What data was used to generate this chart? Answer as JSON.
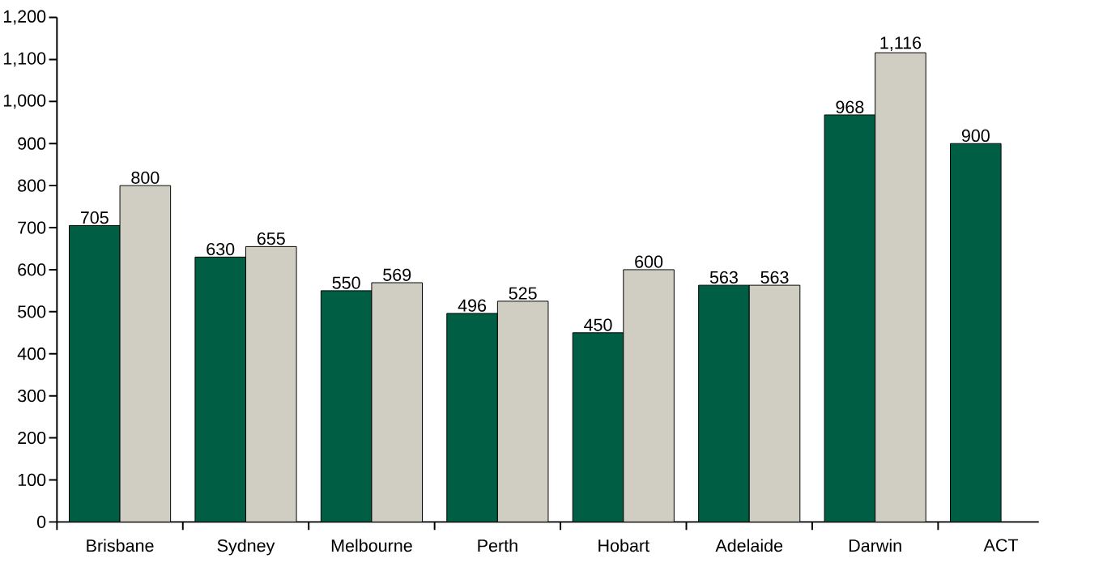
{
  "chart_data": {
    "type": "bar",
    "categories": [
      "Brisbane",
      "Sydney",
      "Melbourne",
      "Perth",
      "Hobart",
      "Adelaide",
      "Darwin",
      "ACT"
    ],
    "series": [
      {
        "color": "#005e44",
        "values": [
          705,
          630,
          550,
          496,
          450,
          563,
          968,
          900
        ],
        "value_labels": [
          "705",
          "630",
          "550",
          "496",
          "450",
          "563",
          "968",
          "900"
        ]
      },
      {
        "color": "#d0cec2",
        "values": [
          800,
          655,
          569,
          525,
          600,
          563,
          1116,
          null
        ],
        "value_labels": [
          "800",
          "655",
          "569",
          "525",
          "600",
          "563",
          "1,116",
          null
        ]
      }
    ],
    "ylim": [
      0,
      1200
    ],
    "yticks": [
      0,
      100,
      200,
      300,
      400,
      500,
      600,
      700,
      800,
      900,
      {
        "value": 1000,
        "label": "1,000"
      },
      {
        "value": 1100,
        "label": "1,100"
      },
      {
        "value": 1200,
        "label": "1,200"
      }
    ],
    "grid": false
  }
}
